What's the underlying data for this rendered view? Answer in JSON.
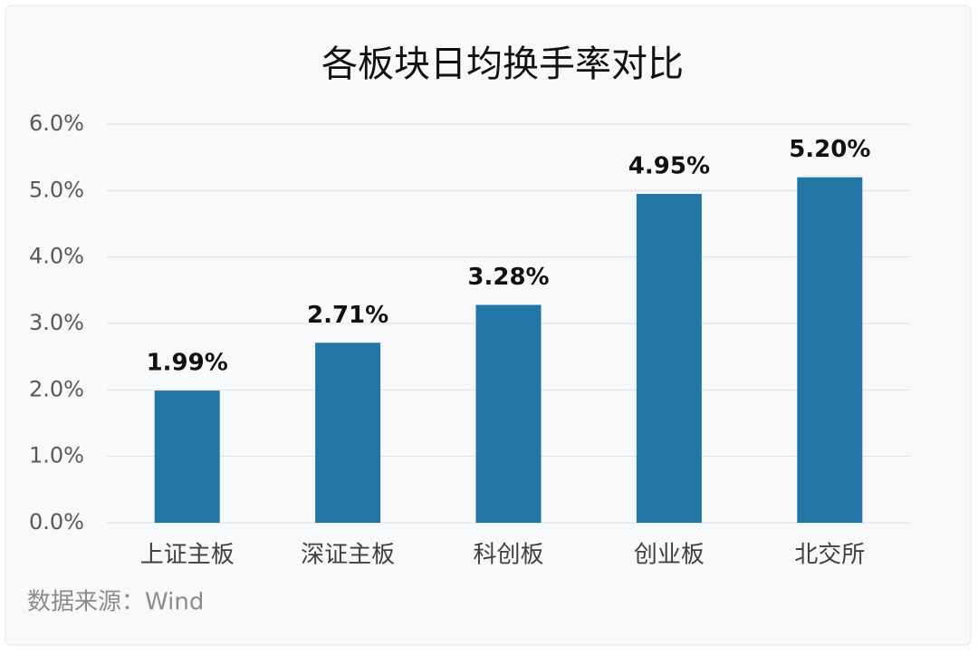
{
  "chart_data": {
    "type": "bar",
    "title": "各板块日均换手率对比",
    "categories": [
      "上证主板",
      "深证主板",
      "科创板",
      "创业板",
      "北交所"
    ],
    "values": [
      1.99,
      2.71,
      3.28,
      4.95,
      5.2
    ],
    "value_labels": [
      "1.99%",
      "2.71%",
      "3.28%",
      "4.95%",
      "5.20%"
    ],
    "color": "#2276a6",
    "ylim": [
      0,
      6
    ],
    "yticks": [
      {
        "value": 0,
        "label": "0.0%"
      },
      {
        "value": 1,
        "label": "1.0%"
      },
      {
        "value": 2,
        "label": "2.0%"
      },
      {
        "value": 3,
        "label": "3.0%"
      },
      {
        "value": 4,
        "label": "4.0%"
      },
      {
        "value": 5,
        "label": "5.0%"
      },
      {
        "value": 6,
        "label": "6.0%"
      }
    ],
    "grid": true,
    "source": "数据来源：Wind"
  }
}
